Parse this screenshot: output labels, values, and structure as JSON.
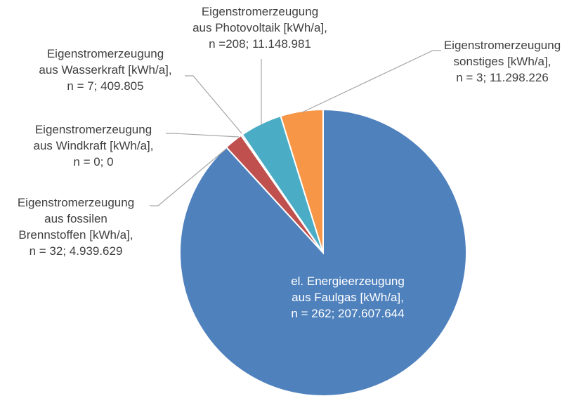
{
  "chart_data": {
    "type": "pie",
    "categories": [
      [
        "el. Energieerzeugung",
        "aus Faulgas [kWh/a],"
      ],
      [
        "Eigenstromerzeugung",
        "aus fossilen",
        "Brennstoffen [kWh/a],"
      ],
      [
        "Eigenstromerzeugung",
        "aus Windkraft [kWh/a],"
      ],
      [
        "Eigenstromerzeugung",
        "aus Wasserkraft  [kWh/a],"
      ],
      [
        "Eigenstromerzeugung",
        "aus Photovoltaik [kWh/a],"
      ],
      [
        "Eigenstromerzeugung",
        "sonstiges [kWh/a],"
      ]
    ],
    "n_labels": [
      "n = 262;",
      "n = 32;",
      "n = 0;",
      "n = 7;",
      "n =208;",
      "n = 3;"
    ],
    "values": [
      207607644,
      4939629,
      0,
      409805,
      11148981,
      11298226
    ],
    "value_labels": [
      "207.607.644",
      "4.939.629",
      "0",
      "409.805",
      "11.148.981",
      "11.298.226"
    ],
    "colors": [
      "#4f81bd",
      "#c0504d",
      "#9bbb59",
      "#8064a2",
      "#4bacc6",
      "#f79646"
    ]
  }
}
